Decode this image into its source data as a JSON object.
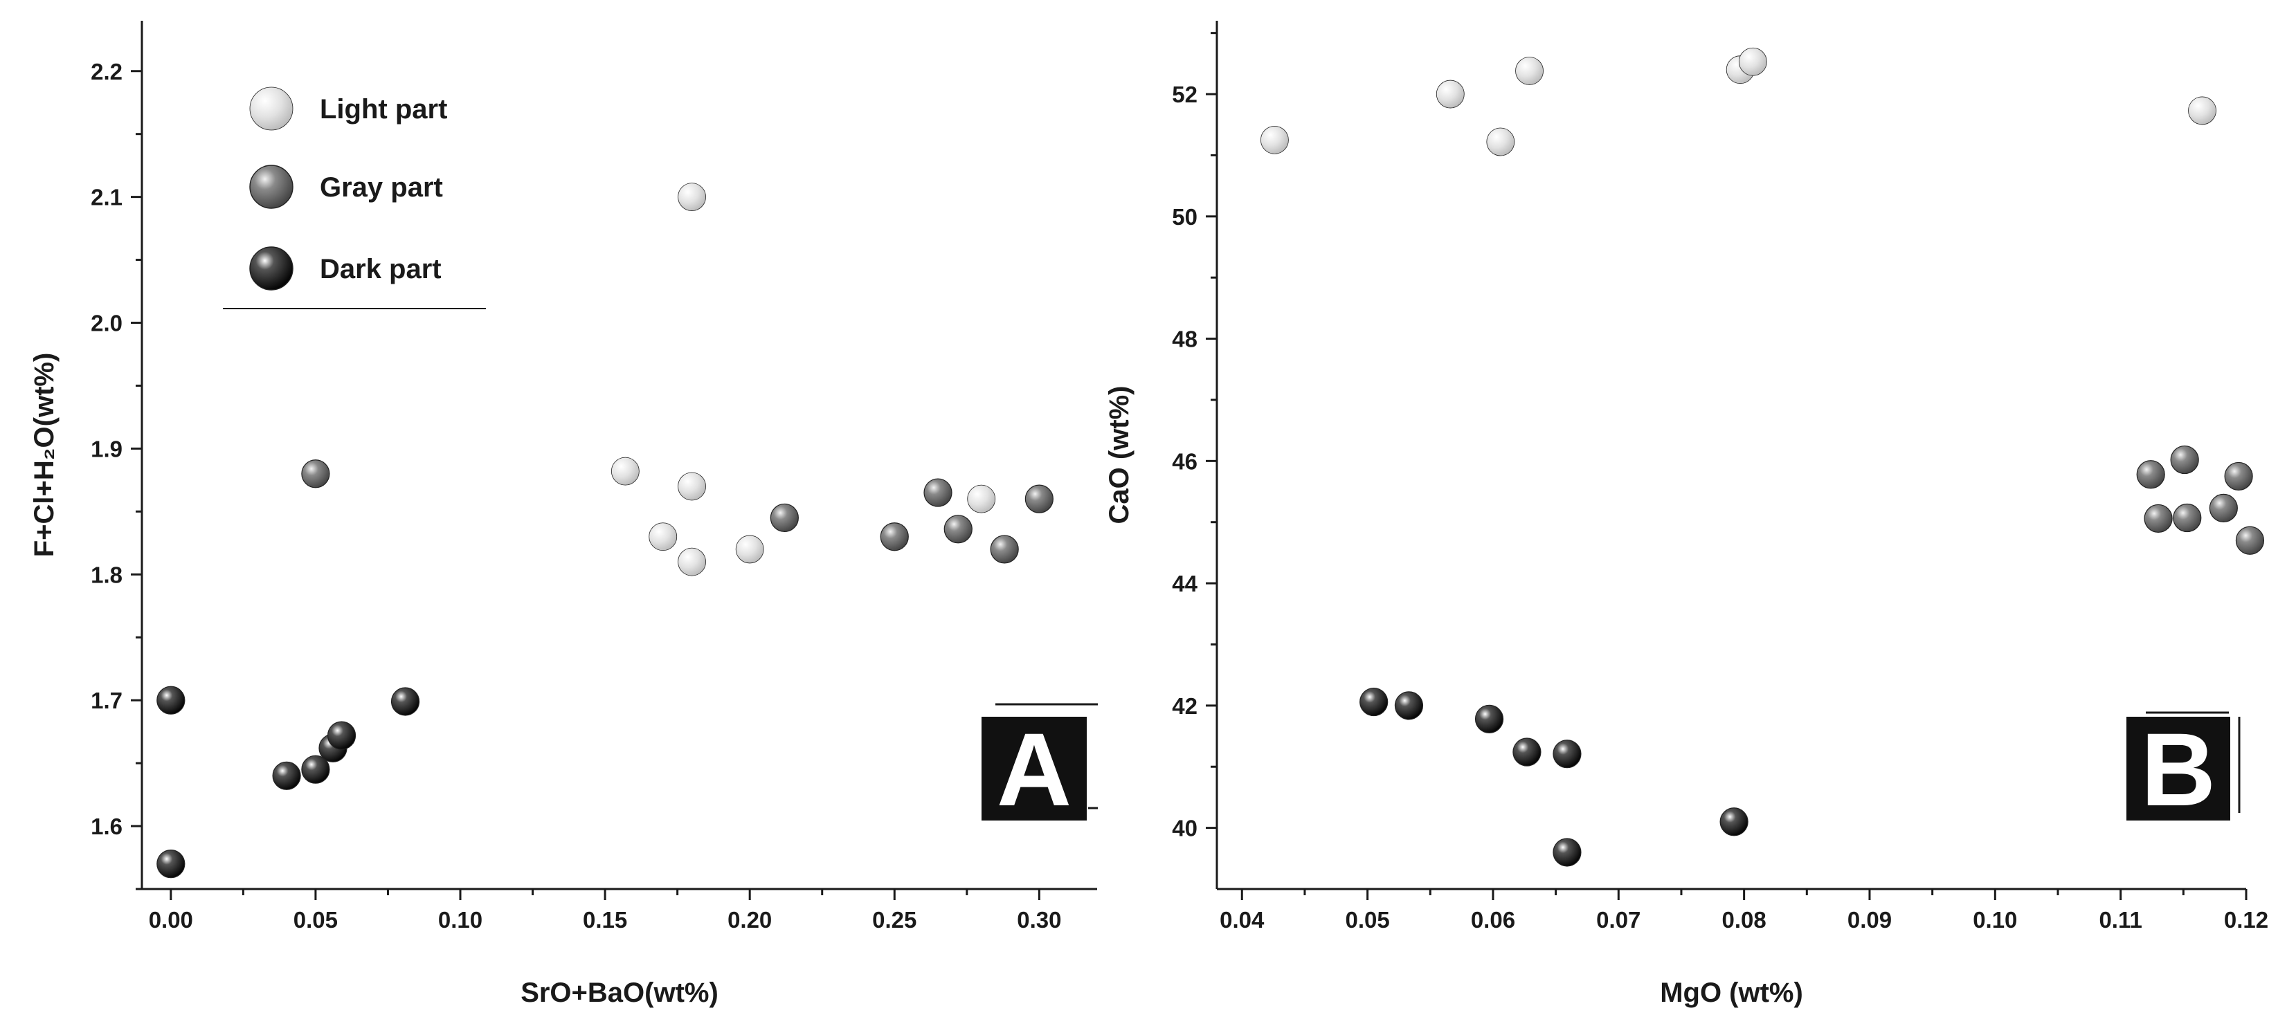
{
  "colors": {
    "light": "#dcdcdc",
    "gray": "#6e6e6e",
    "dark": "#111111",
    "axis": "#1a1a1a",
    "label_box": "#111111"
  },
  "legend": [
    {
      "key": "light",
      "label": "Light part"
    },
    {
      "key": "gray",
      "label": "Gray part"
    },
    {
      "key": "dark",
      "label": "Dark part"
    }
  ],
  "chart_data": [
    {
      "type": "scatter",
      "panel_label": "A",
      "xlabel": "SrO+BaO(wt%)",
      "ylabel": "F+Cl+H₂O(wt%)",
      "xlim": [
        -0.01,
        0.32
      ],
      "ylim": [
        1.55,
        2.24
      ],
      "xticks": [
        0.0,
        0.05,
        0.1,
        0.15,
        0.2,
        0.25,
        0.3
      ],
      "xtick_labels": [
        "0.00",
        "0.05",
        "0.10",
        "0.15",
        "0.20",
        "0.25",
        "0.30"
      ],
      "yticks": [
        1.6,
        1.7,
        1.8,
        1.9,
        2.0,
        2.1,
        2.2
      ],
      "ytick_labels": [
        "1.6",
        "1.7",
        "1.8",
        "1.9",
        "2.0",
        "2.1",
        "2.2"
      ],
      "legend_position": "top-left",
      "series": [
        {
          "name": "Light part",
          "key": "light",
          "x": [
            0.18,
            0.157,
            0.17,
            0.18,
            0.18,
            0.2,
            0.28
          ],
          "y": [
            2.1,
            1.882,
            1.83,
            1.87,
            1.81,
            1.82,
            1.86
          ]
        },
        {
          "name": "Gray part",
          "key": "gray",
          "x": [
            0.05,
            0.212,
            0.25,
            0.265,
            0.272,
            0.288,
            0.3
          ],
          "y": [
            1.88,
            1.845,
            1.83,
            1.865,
            1.836,
            1.82,
            1.86
          ]
        },
        {
          "name": "Dark part",
          "key": "dark",
          "x": [
            0.0,
            0.0,
            0.04,
            0.05,
            0.056,
            0.059,
            0.081
          ],
          "y": [
            1.7,
            1.57,
            1.64,
            1.645,
            1.662,
            1.672,
            1.699
          ]
        }
      ]
    },
    {
      "type": "scatter",
      "panel_label": "B",
      "xlabel": "MgO (wt%)",
      "ylabel": "CaO (wt%)",
      "xlim": [
        0.038,
        0.12
      ],
      "ylim": [
        39,
        53.2
      ],
      "xticks": [
        0.04,
        0.05,
        0.06,
        0.07,
        0.08,
        0.09,
        0.1,
        0.11,
        0.12
      ],
      "xtick_labels": [
        "0.04",
        "0.05",
        "0.06",
        "0.07",
        "0.08",
        "0.09",
        "0.10",
        "0.11",
        "0.12"
      ],
      "yticks": [
        40,
        42,
        44,
        46,
        48,
        50,
        52
      ],
      "ytick_labels": [
        "40",
        "42",
        "44",
        "46",
        "48",
        "50",
        "52"
      ],
      "series": [
        {
          "name": "Light part",
          "key": "light",
          "x": [
            0.0426,
            0.0566,
            0.0606,
            0.0629,
            0.0797,
            0.0807,
            0.1165
          ],
          "y": [
            51.25,
            52.0,
            51.22,
            52.38,
            52.4,
            52.53,
            51.73
          ]
        },
        {
          "name": "Gray part",
          "key": "gray",
          "x": [
            0.1124,
            0.113,
            0.1151,
            0.1153,
            0.1182,
            0.1194,
            0.1203
          ],
          "y": [
            45.78,
            45.06,
            46.02,
            45.07,
            45.23,
            45.75,
            44.7
          ]
        },
        {
          "name": "Dark part",
          "key": "dark",
          "x": [
            0.0505,
            0.0533,
            0.0597,
            0.0627,
            0.0659,
            0.0659,
            0.0792
          ],
          "y": [
            42.06,
            42.0,
            41.78,
            41.24,
            41.21,
            39.6,
            40.1
          ]
        }
      ]
    }
  ]
}
